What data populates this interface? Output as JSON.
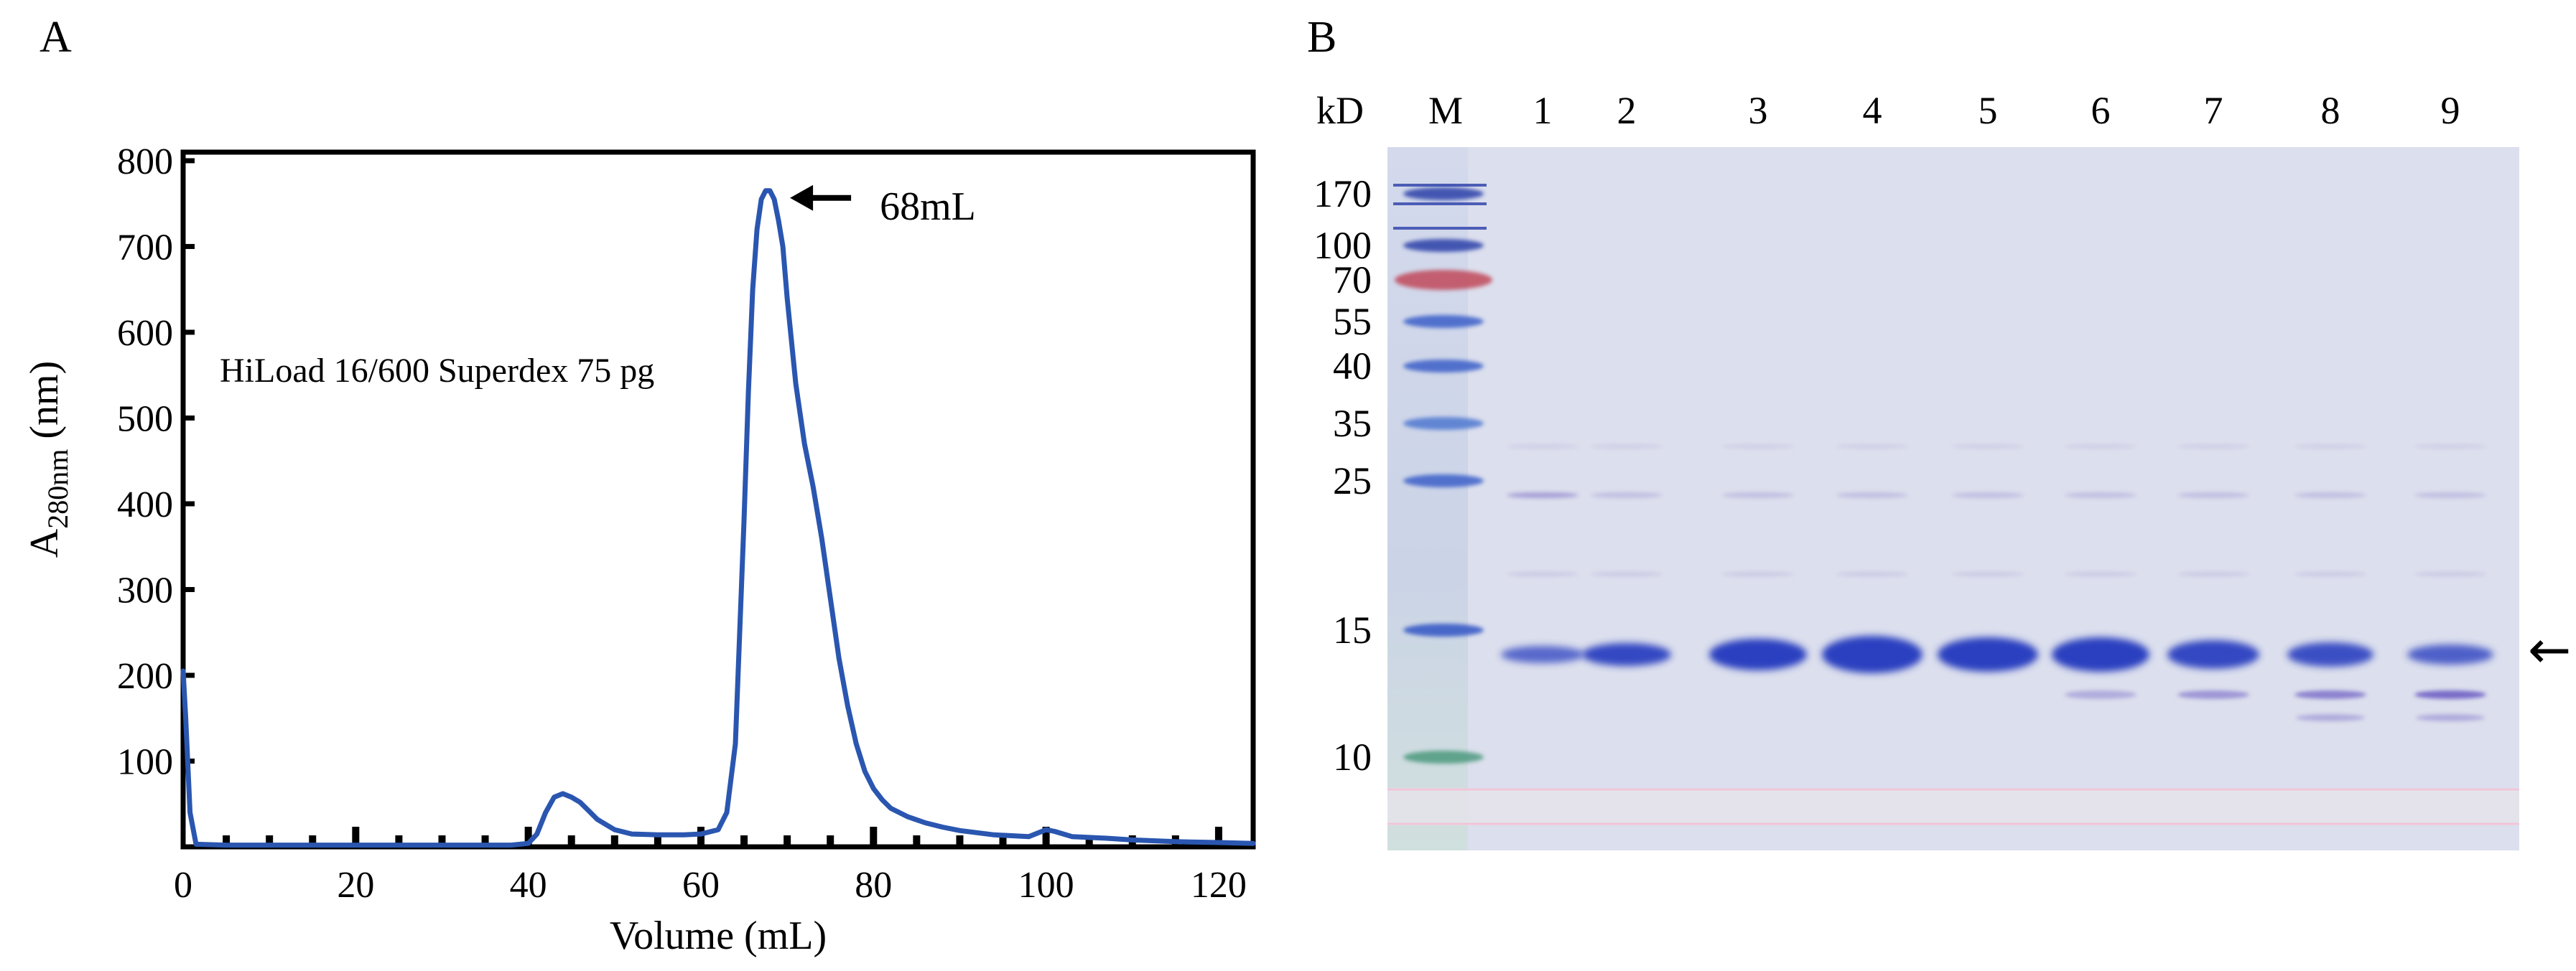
{
  "panels": {
    "a_letter": "A",
    "b_letter": "B"
  },
  "chart_data": [
    {
      "type": "line",
      "title": "",
      "annotation_text": "HiLoad 16/600 Superdex 75 pg",
      "peak_label": "68mL",
      "peak_marker": {
        "x": 68,
        "y": 765
      },
      "xlabel": "Volume (mL)",
      "ylabel_main": "A",
      "ylabel_sub": "280nm",
      "ylabel_unit": " (nm)",
      "xlim": [
        0,
        124
      ],
      "ylim": [
        0,
        810
      ],
      "x_ticks": [
        0,
        20,
        40,
        60,
        80,
        100,
        120
      ],
      "y_ticks": [
        100,
        200,
        300,
        400,
        500,
        600,
        700,
        800
      ],
      "x_tick_labels": [
        "0",
        "20",
        "40",
        "60",
        "80",
        "100",
        "120"
      ],
      "y_tick_labels": [
        "100",
        "200",
        "300",
        "400",
        "500",
        "600",
        "700",
        "800"
      ],
      "line_color": "#2a56b0",
      "series": [
        {
          "x": [
            0,
            0.3,
            0.8,
            1.5,
            5,
            10,
            20,
            30,
            38,
            40,
            41,
            42,
            43,
            44,
            45,
            46,
            47,
            48,
            50,
            52,
            55,
            58,
            60,
            62,
            63,
            64,
            65,
            65.5,
            66,
            66.5,
            67,
            67.5,
            68,
            68.5,
            69,
            69.5,
            70,
            71,
            72,
            73,
            74,
            75,
            76,
            77,
            78,
            79,
            80,
            81,
            82,
            84,
            86,
            88,
            90,
            94,
            98,
            100,
            101,
            103,
            105,
            107,
            110,
            115,
            120,
            124
          ],
          "y": [
            205,
            150,
            40,
            3,
            2,
            2,
            2,
            2,
            2,
            4,
            15,
            40,
            58,
            62,
            58,
            52,
            42,
            32,
            20,
            15,
            14,
            14,
            15,
            20,
            40,
            120,
            380,
            530,
            650,
            720,
            755,
            765,
            765,
            755,
            730,
            700,
            640,
            540,
            470,
            420,
            360,
            290,
            220,
            165,
            120,
            88,
            68,
            55,
            45,
            35,
            28,
            23,
            19,
            14,
            12,
            20,
            18,
            12,
            11,
            10,
            8,
            6,
            5,
            4
          ]
        }
      ]
    },
    {
      "type": "gel",
      "unit_label": "kD",
      "lane_labels": [
        "M",
        "1",
        "2",
        "3",
        "4",
        "5",
        "6",
        "7",
        "8",
        "9"
      ],
      "marker_kda": [
        "170",
        "100",
        "70",
        "55",
        "40",
        "35",
        "25",
        "15",
        "10"
      ],
      "target_arrow": "←",
      "gel_bg": "#dcdfed",
      "band_color": "#2a40c0"
    }
  ]
}
